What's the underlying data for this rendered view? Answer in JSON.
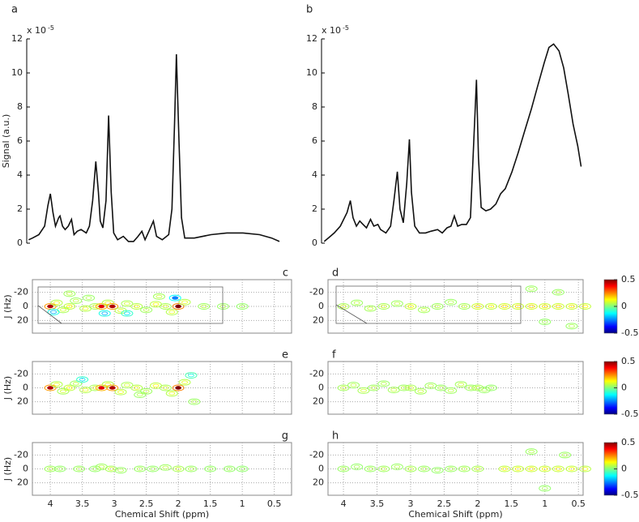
{
  "chart_data": [
    {
      "type": "line",
      "panel": "a",
      "ylabel": "Signal (a.u.)",
      "multiplier": "x 10",
      "exponent": "-5",
      "color": "#111111",
      "xlim": [
        4.37,
        0.23
      ],
      "ylim": [
        0,
        12
      ],
      "yticks": [
        0,
        2,
        4,
        6,
        8,
        10,
        12
      ],
      "x": [
        4.34,
        4.28,
        4.18,
        4.09,
        4.04,
        4.0,
        3.96,
        3.92,
        3.87,
        3.85,
        3.81,
        3.77,
        3.72,
        3.67,
        3.63,
        3.58,
        3.52,
        3.44,
        3.39,
        3.34,
        3.29,
        3.25,
        3.22,
        3.18,
        3.13,
        3.09,
        3.05,
        3.01,
        2.95,
        2.86,
        2.78,
        2.7,
        2.63,
        2.57,
        2.52,
        2.46,
        2.39,
        2.34,
        2.25,
        2.15,
        2.1,
        2.06,
        2.03,
        1.99,
        1.95,
        1.9,
        1.75,
        1.49,
        1.24,
        0.99,
        0.73,
        0.54,
        0.42
      ],
      "values": [
        0.2,
        0.3,
        0.5,
        1.0,
        2.2,
        2.9,
        1.8,
        1.0,
        1.5,
        1.6,
        1.0,
        0.8,
        1.0,
        1.4,
        0.5,
        0.7,
        0.8,
        0.6,
        1.0,
        2.5,
        4.8,
        3.0,
        1.3,
        0.9,
        2.5,
        7.5,
        3.0,
        0.6,
        0.2,
        0.4,
        0.1,
        0.1,
        0.4,
        0.7,
        0.2,
        0.7,
        1.3,
        0.4,
        0.2,
        0.5,
        2.0,
        7.0,
        11.1,
        6.0,
        1.5,
        0.3,
        0.3,
        0.5,
        0.6,
        0.6,
        0.5,
        0.3,
        0.1
      ]
    },
    {
      "type": "line",
      "panel": "b",
      "multiplier": "x 10",
      "exponent": "-5",
      "color": "#111111",
      "xlim": [
        4.33,
        0.43
      ],
      "ylim": [
        0,
        12
      ],
      "yticks": [
        0,
        2,
        4,
        6,
        8,
        10,
        12
      ],
      "x": [
        4.29,
        4.23,
        4.14,
        4.05,
        3.95,
        3.9,
        3.86,
        3.81,
        3.76,
        3.71,
        3.66,
        3.6,
        3.55,
        3.49,
        3.45,
        3.37,
        3.3,
        3.25,
        3.2,
        3.16,
        3.11,
        3.06,
        3.02,
        2.99,
        2.94,
        2.87,
        2.78,
        2.7,
        2.6,
        2.53,
        2.46,
        2.4,
        2.35,
        2.3,
        2.24,
        2.17,
        2.11,
        2.06,
        2.02,
        1.99,
        1.95,
        1.88,
        1.81,
        1.73,
        1.66,
        1.59,
        1.49,
        1.4,
        1.3,
        1.2,
        1.11,
        1.01,
        0.94,
        0.87,
        0.79,
        0.72,
        0.65,
        0.58,
        0.51,
        0.46
      ],
      "values": [
        0.1,
        0.3,
        0.6,
        1.0,
        1.8,
        2.5,
        1.5,
        1.0,
        1.3,
        1.1,
        0.9,
        1.4,
        1.0,
        1.1,
        0.8,
        0.6,
        1.0,
        2.5,
        4.2,
        2.0,
        1.2,
        3.5,
        6.1,
        3.0,
        1.0,
        0.6,
        0.6,
        0.7,
        0.8,
        0.6,
        0.9,
        1.0,
        1.6,
        1.0,
        1.1,
        1.1,
        1.5,
        6.0,
        9.6,
        5.0,
        2.1,
        1.9,
        2.0,
        2.3,
        2.9,
        3.2,
        4.2,
        5.3,
        6.6,
        7.9,
        9.2,
        10.6,
        11.5,
        11.7,
        11.3,
        10.3,
        8.7,
        7.0,
        5.7,
        4.5
      ]
    },
    {
      "type": "contour",
      "panel": "c",
      "ylabel": "J (Hz)",
      "xlim": [
        4.28,
        0.23
      ],
      "ylim": [
        38,
        -38
      ],
      "yticks": [
        -20,
        0,
        20
      ],
      "xticks": [
        4,
        3.5,
        3,
        2.5,
        2,
        1.5,
        1,
        0.5
      ],
      "grid": true,
      "clim": [
        -0.5,
        0.5
      ],
      "x": [
        4.0,
        3.9,
        3.8,
        3.7,
        3.6,
        3.45,
        3.3,
        3.2,
        3.1,
        3.03,
        2.9,
        2.8,
        2.65,
        2.5,
        2.35,
        2.2,
        2.1,
        2.0,
        1.9,
        1.6,
        1.3,
        1.0,
        3.7,
        3.4,
        2.8,
        2.3,
        3.95,
        3.15,
        2.05
      ],
      "y": [
        0,
        -5,
        5,
        0,
        -8,
        3,
        0,
        0,
        -5,
        0,
        6,
        -4,
        0,
        5,
        -3,
        0,
        8,
        0,
        -6,
        0,
        0,
        0,
        -18,
        -12,
        10,
        -14,
        8,
        10,
        -12
      ],
      "values": [
        0.45,
        0.1,
        0.08,
        0.12,
        0.06,
        0.1,
        0.08,
        0.4,
        0.1,
        0.45,
        0.1,
        0.08,
        0.1,
        0.06,
        0.12,
        0.08,
        0.1,
        0.5,
        0.1,
        0.06,
        0.05,
        0.04,
        0.06,
        0.05,
        -0.15,
        0.07,
        -0.2,
        -0.2,
        -0.25
      ]
    },
    {
      "type": "contour",
      "panel": "d",
      "xlim": [
        4.23,
        0.43
      ],
      "ylim": [
        38,
        -38
      ],
      "yticks": [
        -20,
        0,
        20
      ],
      "xticks": [
        4,
        3.5,
        3,
        2.5,
        2,
        1.5,
        1,
        0.5
      ],
      "grid": true,
      "clim": [
        -0.5,
        0.5
      ],
      "cticks": [
        0.5,
        0,
        -0.5
      ],
      "x": [
        4.0,
        3.8,
        3.6,
        3.4,
        3.2,
        3.0,
        2.8,
        2.6,
        2.4,
        2.2,
        2.0,
        1.8,
        1.6,
        1.4,
        1.2,
        1.0,
        0.8,
        0.6,
        0.4,
        1.2,
        0.8,
        0.6,
        1.0
      ],
      "y": [
        0,
        -5,
        3,
        0,
        -4,
        0,
        5,
        0,
        -6,
        0,
        0,
        0,
        0,
        0,
        0,
        0,
        0,
        0,
        0,
        -25,
        -20,
        28,
        22
      ],
      "values": [
        0.08,
        0.06,
        0.07,
        0.08,
        0.06,
        0.12,
        0.07,
        0.06,
        0.05,
        0.07,
        0.15,
        0.12,
        0.15,
        0.15,
        0.16,
        0.15,
        0.15,
        0.14,
        0.13,
        0.05,
        0.05,
        0.05,
        0.04
      ]
    },
    {
      "type": "contour",
      "panel": "e",
      "ylabel": "J (Hz)",
      "xlim": [
        4.28,
        0.23
      ],
      "ylim": [
        38,
        -38
      ],
      "yticks": [
        -20,
        0,
        20
      ],
      "xticks": [
        4,
        3.5,
        3,
        2.5,
        2,
        1.5,
        1,
        0.5
      ],
      "grid": true,
      "clim": [
        -0.5,
        0.5
      ],
      "x": [
        4.0,
        3.9,
        3.8,
        3.7,
        3.6,
        3.45,
        3.3,
        3.2,
        3.1,
        3.03,
        2.9,
        2.8,
        2.65,
        2.5,
        2.35,
        2.2,
        2.1,
        2.0,
        1.9,
        1.75,
        3.5,
        2.6,
        1.8
      ],
      "y": [
        0,
        -5,
        5,
        0,
        -6,
        3,
        0,
        0,
        -5,
        0,
        6,
        -4,
        0,
        5,
        -3,
        0,
        8,
        0,
        -8,
        20,
        -12,
        10,
        -18
      ],
      "values": [
        0.45,
        0.1,
        0.08,
        0.12,
        0.06,
        0.1,
        0.08,
        0.4,
        0.1,
        0.45,
        0.1,
        0.08,
        0.1,
        0.06,
        0.12,
        0.08,
        0.1,
        0.5,
        0.1,
        0.05,
        -0.15,
        0.05,
        -0.1
      ]
    },
    {
      "type": "contour",
      "panel": "f",
      "xlim": [
        4.23,
        0.43
      ],
      "ylim": [
        38,
        -38
      ],
      "yticks": [
        -20,
        0,
        20
      ],
      "xticks": [
        4,
        3.5,
        3,
        2.5,
        2,
        1.5,
        1,
        0.5
      ],
      "grid": true,
      "clim": [
        -0.5,
        0.5
      ],
      "cticks": [
        0.5,
        0,
        -0.5
      ],
      "x": [
        4.0,
        3.85,
        3.7,
        3.55,
        3.4,
        3.25,
        3.1,
        3.0,
        2.85,
        2.7,
        2.55,
        2.4,
        2.25,
        2.1,
        2.0,
        1.9,
        1.8
      ],
      "y": [
        0,
        -4,
        4,
        0,
        -6,
        3,
        0,
        0,
        5,
        -3,
        0,
        4,
        -5,
        0,
        0,
        3,
        0
      ],
      "values": [
        0.07,
        0.06,
        0.08,
        0.06,
        0.05,
        0.07,
        0.06,
        0.08,
        0.07,
        0.06,
        0.05,
        0.06,
        0.07,
        0.06,
        0.07,
        0.05,
        0.04
      ]
    },
    {
      "type": "contour",
      "panel": "g",
      "ylabel": "J (Hz)",
      "xlabel": "Chemical Shift (ppm)",
      "xlim": [
        4.28,
        0.23
      ],
      "ylim": [
        38,
        -38
      ],
      "yticks": [
        -20,
        0,
        20
      ],
      "xticks": [
        4,
        3.5,
        3,
        2.5,
        2,
        1.5,
        1,
        0.5
      ],
      "grid": true,
      "clim": [
        -0.5,
        0.5
      ],
      "x": [
        4.0,
        3.85,
        3.55,
        3.3,
        3.2,
        3.05,
        2.9,
        2.6,
        2.4,
        2.2,
        2.0,
        1.8,
        1.5,
        1.2,
        1.0
      ],
      "y": [
        0,
        0,
        0,
        0,
        -3,
        0,
        2,
        0,
        0,
        -2,
        0,
        0,
        0,
        0,
        0
      ],
      "values": [
        0.06,
        0.04,
        0.05,
        0.04,
        0.06,
        0.08,
        0.05,
        0.05,
        0.04,
        0.06,
        0.08,
        0.05,
        0.04,
        0.04,
        0.03
      ]
    },
    {
      "type": "contour",
      "panel": "h",
      "xlabel": "Chemical Shift (ppm)",
      "xlim": [
        4.23,
        0.43
      ],
      "ylim": [
        38,
        -38
      ],
      "yticks": [
        -20,
        0,
        20
      ],
      "xticks": [
        4,
        3.5,
        3,
        2.5,
        2,
        1.5,
        1,
        0.5
      ],
      "grid": true,
      "clim": [
        -0.5,
        0.5
      ],
      "cticks": [
        0.5,
        0,
        -0.5
      ],
      "x": [
        4.0,
        3.8,
        3.6,
        3.4,
        3.2,
        3.0,
        2.8,
        2.6,
        2.4,
        2.2,
        2.0,
        1.6,
        1.4,
        1.2,
        1.0,
        0.8,
        0.6,
        0.4,
        1.2,
        0.7,
        1.0
      ],
      "y": [
        0,
        -3,
        0,
        0,
        -3,
        0,
        0,
        2,
        0,
        0,
        0,
        0,
        0,
        0,
        0,
        0,
        0,
        0,
        -25,
        -20,
        28
      ],
      "values": [
        0.05,
        0.04,
        0.05,
        0.06,
        0.05,
        0.07,
        0.05,
        0.04,
        0.05,
        0.06,
        0.08,
        0.12,
        0.13,
        0.14,
        0.13,
        0.13,
        0.12,
        0.11,
        0.05,
        0.05,
        0.04
      ]
    }
  ]
}
